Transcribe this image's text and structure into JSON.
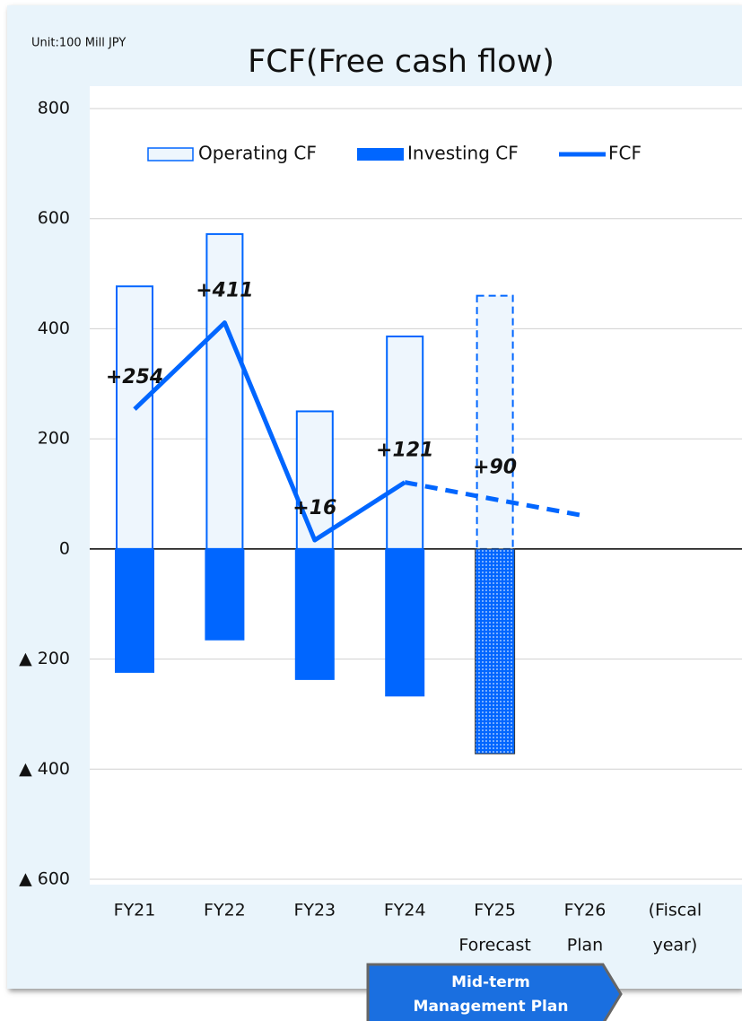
{
  "chart_data": {
    "type": "bar-line",
    "title": "FCF(Free cash flow)",
    "unit_label": "Unit:100 Mill JPY",
    "categories": [
      [
        "FY21"
      ],
      [
        "FY22"
      ],
      [
        "FY23"
      ],
      [
        "FY24"
      ],
      [
        "FY25",
        "Forecast"
      ],
      [
        "FY26",
        "Plan"
      ]
    ],
    "x_label_lines": [
      "(Fiscal",
      "year)"
    ],
    "estimate": [
      false,
      false,
      false,
      false,
      true,
      true
    ],
    "series": [
      {
        "name": "Operating CF",
        "kind": "bar",
        "color": "#0066ff",
        "values": [
          477,
          572,
          250,
          386,
          460,
          null
        ]
      },
      {
        "name": "Investing CF",
        "kind": "bar",
        "color": "#0066ff",
        "values": [
          -225,
          -166,
          -238,
          -268,
          -372,
          null
        ]
      },
      {
        "name": "FCF",
        "kind": "line",
        "color": "#0066ff",
        "values": [
          254,
          411,
          16,
          121,
          90,
          60
        ],
        "value_labels": [
          "+254",
          "+411",
          "+16",
          "+121",
          "+90",
          null
        ]
      }
    ],
    "ylim": [
      -600,
      800
    ],
    "yticks": [
      {
        "value": -600,
        "label": "▲ 600"
      },
      {
        "value": -400,
        "label": "▲ 400"
      },
      {
        "value": -200,
        "label": "▲ 200"
      },
      0,
      200,
      400,
      600,
      800
    ],
    "grid": true,
    "legend": "top",
    "annotation": [
      "Mid-term",
      "Management Plan"
    ]
  }
}
